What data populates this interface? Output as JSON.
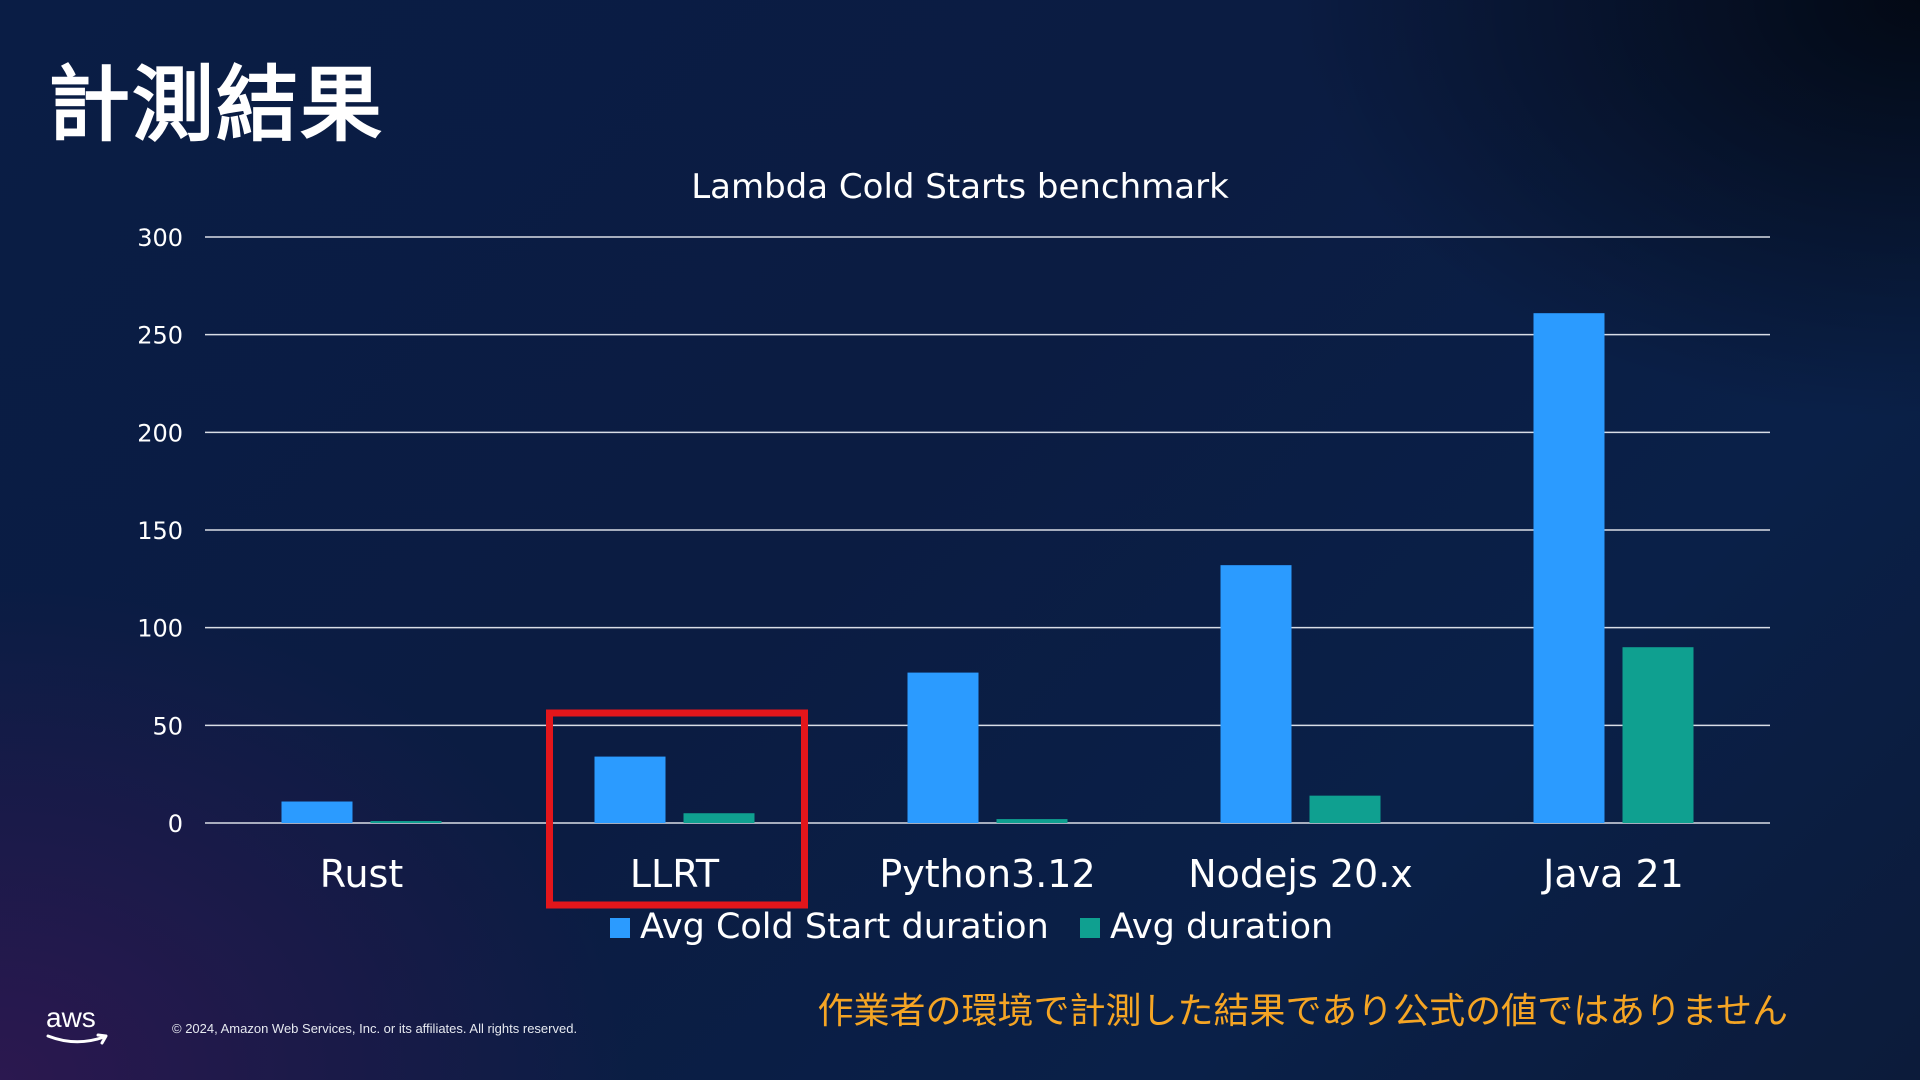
{
  "slide": {
    "title": "計測結果",
    "notice": "作業者の環境で計測した結果であり公式の値ではありません",
    "copyright": "© 2024, Amazon Web Services, Inc. or its affiliates. All rights reserved.",
    "logo_text": "aws"
  },
  "chart_data": {
    "type": "bar",
    "title": "Lambda Cold Starts benchmark",
    "xlabel": "",
    "ylabel": "",
    "categories": [
      "Rust",
      "LLRT",
      "Python3.12",
      "Nodejs 20.x",
      "Java 21"
    ],
    "series": [
      {
        "name": "Avg Cold Start duration",
        "color": "#2b9bff",
        "values": [
          11,
          34,
          77,
          132,
          261
        ]
      },
      {
        "name": "Avg duration",
        "color": "#0fa090",
        "values": [
          1,
          5,
          2,
          14,
          90
        ]
      }
    ],
    "ylim": [
      0,
      300
    ],
    "yticks": [
      0,
      50,
      100,
      150,
      200,
      250,
      300
    ],
    "grid": true,
    "legend_position": "bottom",
    "highlight": {
      "category": "LLRT",
      "color": "#e3161b"
    }
  }
}
